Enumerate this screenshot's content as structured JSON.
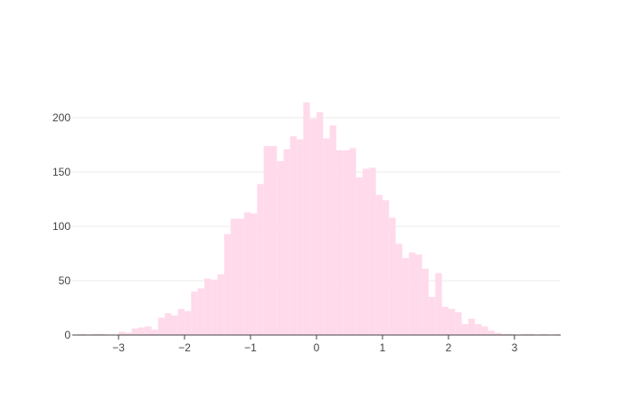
{
  "chart_data": {
    "type": "bar",
    "histogram": true,
    "bin_width": 0.1,
    "x_start": -3.7,
    "x_values": [
      -3.65,
      -3.55,
      -3.45,
      -3.35,
      -3.25,
      -3.15,
      -3.05,
      -2.95,
      -2.85,
      -2.75,
      -2.65,
      -2.55,
      -2.45,
      -2.35,
      -2.25,
      -2.15,
      -2.05,
      -1.95,
      -1.85,
      -1.75,
      -1.65,
      -1.55,
      -1.45,
      -1.35,
      -1.25,
      -1.15,
      -1.05,
      -0.95,
      -0.85,
      -0.75,
      -0.65,
      -0.55,
      -0.45,
      -0.35,
      -0.25,
      -0.15,
      -0.05,
      0.05,
      0.15,
      0.25,
      0.35,
      0.45,
      0.55,
      0.65,
      0.75,
      0.85,
      0.95,
      1.05,
      1.15,
      1.25,
      1.35,
      1.45,
      1.55,
      1.65,
      1.75,
      1.85,
      1.95,
      2.05,
      2.15,
      2.25,
      2.35,
      2.45,
      2.55,
      2.65,
      2.75,
      2.85,
      2.95,
      3.05,
      3.15,
      3.25,
      3.35,
      3.45,
      3.55,
      3.65
    ],
    "values": [
      0,
      1,
      0,
      1,
      1,
      0,
      0,
      3,
      2,
      6,
      7,
      8,
      5,
      16,
      20,
      18,
      24,
      22,
      40,
      43,
      52,
      51,
      56,
      93,
      107,
      107,
      113,
      112,
      139,
      174,
      174,
      160,
      171,
      183,
      180,
      214,
      199,
      205,
      181,
      193,
      170,
      170,
      172,
      145,
      153,
      154,
      129,
      124,
      108,
      84,
      71,
      76,
      74,
      61,
      35,
      57,
      26,
      24,
      21,
      10,
      15,
      10,
      8,
      4,
      2,
      1,
      1,
      0,
      1,
      1,
      0,
      1,
      0,
      1
    ],
    "bar_color": "#ffdaeb",
    "xlim": [
      -3.7,
      3.7
    ],
    "ylim": [
      0,
      225
    ],
    "x_ticks": [
      -3,
      -2,
      -1,
      0,
      1,
      2,
      3
    ],
    "y_ticks": [
      0,
      50,
      100,
      150,
      200
    ],
    "x_tick_labels": [
      "−3",
      "−2",
      "−1",
      "0",
      "1",
      "2",
      "3"
    ],
    "y_tick_labels": [
      "0",
      "50",
      "100",
      "150",
      "200"
    ],
    "grid": "horizontal",
    "grid_color": "#ebebeb",
    "axis_color": "#444444",
    "title": "",
    "xlabel": "",
    "ylabel": ""
  }
}
